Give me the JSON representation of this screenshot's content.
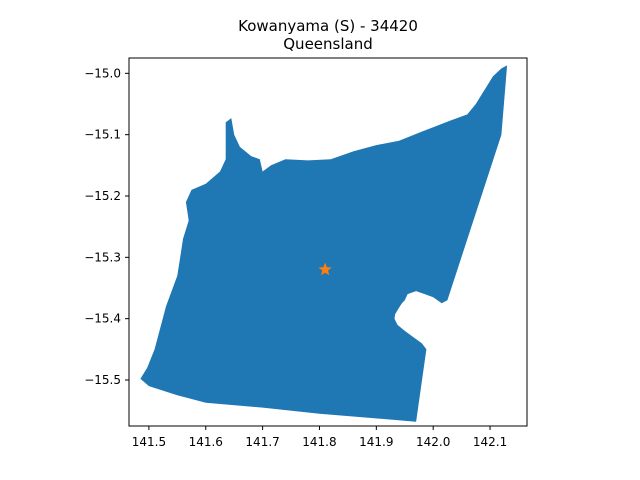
{
  "title": {
    "line1": "Kowanyama (S) - 34420",
    "line2": "Queensland"
  },
  "colors": {
    "region_fill": "#1f77b4",
    "marker": "#ff7f0e",
    "axis": "#000000",
    "background": "#ffffff"
  },
  "chart_data": {
    "type": "map",
    "grid": false,
    "xlim": [
      141.465,
      142.165
    ],
    "ylim": [
      -15.575,
      -14.975
    ],
    "x_ticks": [
      141.5,
      141.6,
      141.7,
      141.8,
      141.9,
      142.0,
      142.1
    ],
    "x_tick_labels": [
      "141.5",
      "141.6",
      "141.7",
      "141.8",
      "141.9",
      "142.0",
      "142.1"
    ],
    "y_ticks": [
      -15.0,
      -15.1,
      -15.2,
      -15.3,
      -15.4,
      -15.5
    ],
    "y_tick_labels": [
      "−15.0",
      "−15.1",
      "−15.2",
      "−15.3",
      "−15.4",
      "−15.5"
    ],
    "centroid": {
      "lon": 141.81,
      "lat": -15.32,
      "marker": "star"
    },
    "boundary": [
      [
        142.13,
        -14.987
      ],
      [
        142.12,
        -15.1
      ],
      [
        142.025,
        -15.37
      ],
      [
        142.015,
        -15.375
      ],
      [
        142.0,
        -15.365
      ],
      [
        141.985,
        -15.36
      ],
      [
        141.97,
        -15.355
      ],
      [
        141.955,
        -15.36
      ],
      [
        141.95,
        -15.37
      ],
      [
        141.945,
        -15.375
      ],
      [
        141.938,
        -15.385
      ],
      [
        141.933,
        -15.393
      ],
      [
        141.932,
        -15.4
      ],
      [
        141.937,
        -15.41
      ],
      [
        141.95,
        -15.42
      ],
      [
        141.965,
        -15.43
      ],
      [
        141.98,
        -15.44
      ],
      [
        141.988,
        -15.45
      ],
      [
        141.97,
        -15.568
      ],
      [
        141.8,
        -15.555
      ],
      [
        141.7,
        -15.545
      ],
      [
        141.6,
        -15.537
      ],
      [
        141.55,
        -15.525
      ],
      [
        141.5,
        -15.51
      ],
      [
        141.485,
        -15.498
      ],
      [
        141.497,
        -15.48
      ],
      [
        141.51,
        -15.45
      ],
      [
        141.53,
        -15.38
      ],
      [
        141.55,
        -15.33
      ],
      [
        141.555,
        -15.3
      ],
      [
        141.56,
        -15.27
      ],
      [
        141.57,
        -15.24
      ],
      [
        141.565,
        -15.21
      ],
      [
        141.575,
        -15.19
      ],
      [
        141.6,
        -15.18
      ],
      [
        141.625,
        -15.16
      ],
      [
        141.635,
        -15.14
      ],
      [
        141.635,
        -15.08
      ],
      [
        141.645,
        -15.073
      ],
      [
        141.65,
        -15.1
      ],
      [
        141.66,
        -15.12
      ],
      [
        141.68,
        -15.135
      ],
      [
        141.695,
        -15.14
      ],
      [
        141.7,
        -15.16
      ],
      [
        141.715,
        -15.15
      ],
      [
        141.74,
        -15.14
      ],
      [
        141.78,
        -15.142
      ],
      [
        141.82,
        -15.14
      ],
      [
        141.86,
        -15.127
      ],
      [
        141.9,
        -15.117
      ],
      [
        141.94,
        -15.11
      ],
      [
        141.98,
        -15.095
      ],
      [
        142.0,
        -15.088
      ],
      [
        142.03,
        -15.077
      ],
      [
        142.06,
        -15.067
      ],
      [
        142.075,
        -15.05
      ],
      [
        142.085,
        -15.035
      ],
      [
        142.095,
        -15.02
      ],
      [
        142.105,
        -15.005
      ],
      [
        142.12,
        -14.992
      ]
    ]
  }
}
